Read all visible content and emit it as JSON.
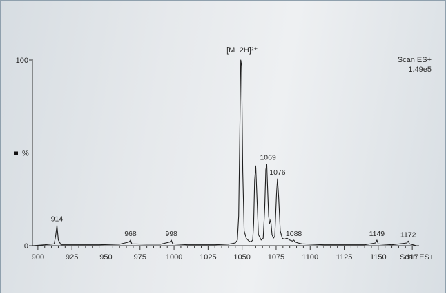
{
  "chart_data": {
    "type": "line",
    "title": "",
    "ylabel": "%",
    "y_ticks": [
      "100",
      "0"
    ],
    "y_mid_label": "%",
    "x_ticks": [
      "900",
      "925",
      "950",
      "975",
      "1000",
      "1025",
      "1050",
      "1075",
      "1100",
      "1125",
      "1150",
      "117"
    ],
    "x_tick_values": [
      900,
      925,
      950,
      975,
      1000,
      1025,
      1050,
      1075,
      1100,
      1125,
      1150,
      1175
    ],
    "xlim": [
      896,
      1180
    ],
    "ylim": [
      0,
      100
    ],
    "scan_label": "Scan ES+",
    "intensity_label": "1.49e5",
    "axis_scan_label": "Scan ES+",
    "peak_annotation": "[M+2H]²⁺",
    "series": [
      {
        "x": [
          896,
          905,
          912,
          913,
          914,
          915,
          917,
          930,
          945,
          960,
          967,
          968,
          969,
          980,
          990,
          997,
          998,
          999,
          1010,
          1020,
          1030,
          1040,
          1045,
          1046.5,
          1047.5,
          1048.3,
          1049,
          1049.6,
          1050.5,
          1051.5,
          1053,
          1055,
          1056.5,
          1057.8,
          1058.5,
          1059.2,
          1060,
          1060.8,
          1062,
          1064,
          1065.5,
          1066.6,
          1067.4,
          1068.1,
          1068.8,
          1069.5,
          1070.2,
          1071,
          1072,
          1073,
          1074,
          1075.3,
          1076,
          1076.8,
          1078,
          1079.5,
          1081,
          1083,
          1085,
          1087,
          1088,
          1089,
          1091,
          1094,
          1100,
          1110,
          1120,
          1130,
          1140,
          1148,
          1149,
          1150,
          1160,
          1171,
          1172,
          1173,
          1178
        ],
        "y": [
          0,
          0.5,
          1,
          5,
          11,
          3,
          0.5,
          0.5,
          0.5,
          0.8,
          2,
          3,
          1,
          0.8,
          0.8,
          2,
          3,
          1,
          0.5,
          0.5,
          0.5,
          0.8,
          1.5,
          3,
          16,
          60,
          100,
          97,
          40,
          8,
          4,
          2.5,
          2,
          3,
          12,
          35,
          43,
          28,
          6,
          3,
          4,
          20,
          41,
          44,
          30,
          16,
          12,
          14,
          6,
          4,
          5,
          28,
          36,
          27,
          8,
          4,
          3.5,
          4,
          3,
          2.5,
          3,
          2,
          1.5,
          1,
          0.8,
          0.5,
          0.5,
          0.5,
          0.5,
          1.5,
          3,
          1,
          0.5,
          1.5,
          2.5,
          1,
          0
        ]
      }
    ],
    "peak_labels": [
      {
        "x": 914,
        "y": 11,
        "label": "914"
      },
      {
        "x": 968,
        "y": 3,
        "label": "968"
      },
      {
        "x": 998,
        "y": 3,
        "label": "998"
      },
      {
        "x": 1069,
        "y": 44,
        "label": "1069"
      },
      {
        "x": 1076,
        "y": 36,
        "label": "1076"
      },
      {
        "x": 1088,
        "y": 3,
        "label": "1088"
      },
      {
        "x": 1149,
        "y": 3,
        "label": "1149"
      },
      {
        "x": 1172,
        "y": 2.5,
        "label": "1172"
      }
    ]
  }
}
